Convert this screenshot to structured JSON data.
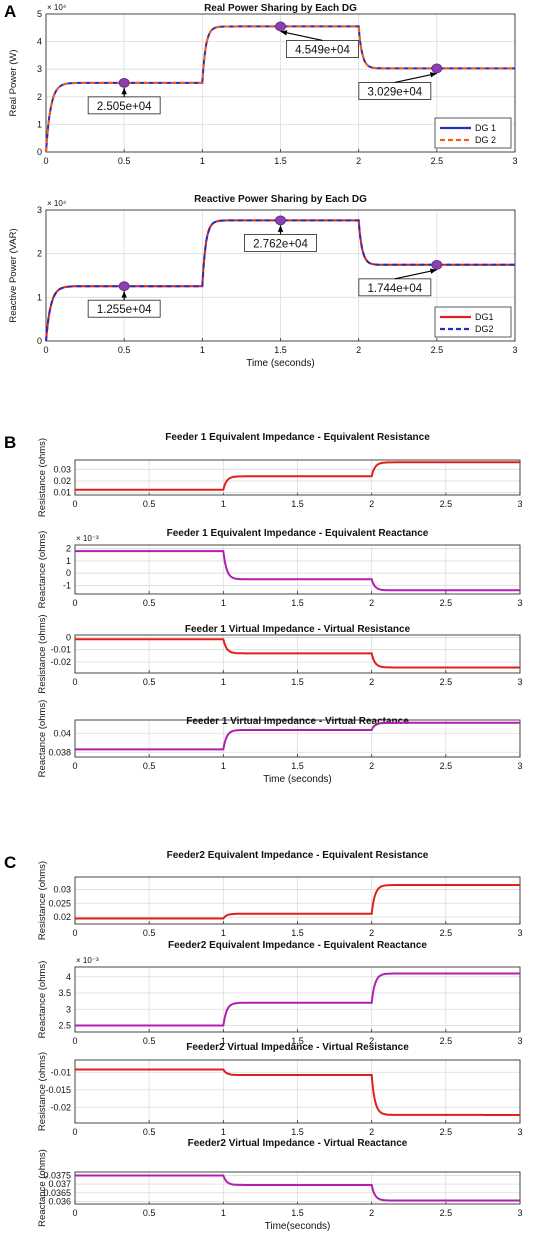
{
  "panels": [
    {
      "letter": "A"
    },
    {
      "letter": "B"
    },
    {
      "letter": "C"
    }
  ],
  "colors": {
    "red": "#e0201c",
    "blue": "#1f2fbf",
    "magenta": "#b11fb1",
    "orange": "#ff5a14",
    "marker": "#8b3fb0",
    "grid": "#dcdcdc"
  },
  "chart_data": [
    {
      "type": "line",
      "panel": "A",
      "title": "Real Power Sharing by Each DG",
      "ylabel": "Real Power (W)",
      "xlabel": "",
      "exponent": "× 10⁴",
      "xlim": [
        0,
        3
      ],
      "ylim": [
        0,
        5
      ],
      "xticks": [
        "0",
        "0.5",
        "1",
        "1.5",
        "2",
        "2.5",
        "3"
      ],
      "yticks": [
        "0",
        "1",
        "2",
        "3",
        "4",
        "5"
      ],
      "segments": [
        [
          0,
          2.505
        ],
        [
          1,
          4.549
        ],
        [
          2,
          3.029
        ]
      ],
      "series": [
        {
          "name": "DG 1",
          "color": "#1f2fbf",
          "dash": "solid"
        },
        {
          "name": "DG 2",
          "color": "#ff5a14",
          "dash": "dashed"
        }
      ],
      "legend": "bottom-right",
      "annotations": [
        {
          "x": 0.5,
          "y": 2.505,
          "text": "2.505e+04",
          "placement": "below"
        },
        {
          "x": 1.5,
          "y": 4.549,
          "text": "4.549e+04",
          "placement": "below-right"
        },
        {
          "x": 2.5,
          "y": 3.029,
          "text": "3.029e+04",
          "placement": "below-left"
        }
      ]
    },
    {
      "type": "line",
      "panel": "A",
      "title": "Reactive Power Sharing by Each DG",
      "ylabel": "Reactive Power (VAR)",
      "xlabel": "Time (seconds)",
      "exponent": "× 10⁴",
      "xlim": [
        0,
        3
      ],
      "ylim": [
        0,
        3
      ],
      "xticks": [
        "0",
        "0.5",
        "1",
        "1.5",
        "2",
        "2.5",
        "3"
      ],
      "yticks": [
        "0",
        "1",
        "2",
        "3"
      ],
      "segments": [
        [
          0,
          1.255
        ],
        [
          1,
          2.762
        ],
        [
          2,
          1.744
        ]
      ],
      "series": [
        {
          "name": "DG1",
          "color": "#e0201c",
          "dash": "solid"
        },
        {
          "name": "DG2",
          "color": "#1f2fbf",
          "dash": "dashed"
        }
      ],
      "legend": "bottom-right",
      "annotations": [
        {
          "x": 0.5,
          "y": 1.255,
          "text": "1.255e+04",
          "placement": "below"
        },
        {
          "x": 1.5,
          "y": 2.762,
          "text": "2.762e+04",
          "placement": "below"
        },
        {
          "x": 2.5,
          "y": 1.744,
          "text": "1.744e+04",
          "placement": "below-left"
        }
      ]
    },
    {
      "type": "line",
      "panel": "B",
      "title": "Feeder 1 Equivalent Impedance  - Equivalent Resistance",
      "ylabel": "Resistance (ohms)",
      "xlabel": "",
      "xlim": [
        0,
        3
      ],
      "ylim": [
        0.008,
        0.038
      ],
      "xticks": [
        "0",
        "0.5",
        "1",
        "1.5",
        "2",
        "2.5",
        "3"
      ],
      "yticks": [
        "0.01",
        "0.02",
        "0.03"
      ],
      "ytick_values": [
        0.01,
        0.02,
        0.03
      ],
      "segments": [
        [
          0,
          0.0125
        ],
        [
          1,
          0.024
        ],
        [
          2,
          0.036
        ]
      ],
      "series": [
        {
          "color": "#e0201c"
        }
      ]
    },
    {
      "type": "line",
      "panel": "B",
      "title": "Feeder 1 Equivalent Impedance  -  Equivalent Reactance",
      "ylabel": "Reactance (ohms)",
      "xlabel": "",
      "exponent": "× 10⁻³",
      "xlim": [
        0,
        3
      ],
      "ylim": [
        -1.7,
        2.3
      ],
      "xticks": [
        "0",
        "0.5",
        "1",
        "1.5",
        "2",
        "2.5",
        "3"
      ],
      "yticks": [
        "-1",
        "0",
        "1",
        "2"
      ],
      "ytick_values": [
        -1,
        0,
        1,
        2
      ],
      "segments": [
        [
          0,
          1.8
        ],
        [
          1,
          -0.5
        ],
        [
          2,
          -1.4
        ]
      ],
      "series": [
        {
          "color": "#b11fb1"
        }
      ]
    },
    {
      "type": "line",
      "panel": "B",
      "title": "Feeder 1 Virtual Impedance - Virtual Resistance",
      "ylabel": "Resistance (ohms)",
      "xlabel": "",
      "xlim": [
        0,
        3
      ],
      "ylim": [
        -0.029,
        0.002
      ],
      "xticks": [
        "0",
        "0.5",
        "1",
        "1.5",
        "2",
        "2.5",
        "3"
      ],
      "yticks": [
        "0",
        "-0.01",
        "-0.02"
      ],
      "ytick_values": [
        0,
        -0.01,
        -0.02
      ],
      "segments": [
        [
          0,
          -0.0015
        ],
        [
          1,
          -0.013
        ],
        [
          2,
          -0.0245
        ]
      ],
      "series": [
        {
          "color": "#e0201c"
        }
      ]
    },
    {
      "type": "line",
      "panel": "B",
      "title": "Feeder 1 Virtual Impedance - Virtual Reactance",
      "ylabel": "Reactance (ohms)",
      "xlabel": "Time (seconds)",
      "xlim": [
        0,
        3
      ],
      "ylim": [
        0.0375,
        0.0414
      ],
      "xticks": [
        "0",
        "0.5",
        "1",
        "1.5",
        "2",
        "2.5",
        "3"
      ],
      "yticks": [
        "0.038",
        "0.04"
      ],
      "ytick_values": [
        0.038,
        0.04
      ],
      "segments": [
        [
          0,
          0.0383
        ],
        [
          1,
          0.04035
        ],
        [
          2,
          0.0411
        ]
      ],
      "series": [
        {
          "color": "#b11fb1"
        }
      ]
    },
    {
      "type": "line",
      "panel": "C",
      "title": "Feeder2 Equivalent Impedance - Equivalent Resistance",
      "ylabel": "Resistance (ohms)",
      "xlabel": "",
      "xlim": [
        0,
        3
      ],
      "ylim": [
        0.0175,
        0.0345
      ],
      "xticks": [
        "0",
        "0.5",
        "1",
        "1.5",
        "2",
        "2.5",
        "3"
      ],
      "yticks": [
        "0.02",
        "0.025",
        "0.03"
      ],
      "ytick_values": [
        0.02,
        0.025,
        0.03
      ],
      "segments": [
        [
          0,
          0.0195
        ],
        [
          1,
          0.0212
        ],
        [
          2,
          0.0316
        ]
      ],
      "series": [
        {
          "color": "#e0201c"
        }
      ]
    },
    {
      "type": "line",
      "panel": "C",
      "title": "Feeder2 Equivalent Impedance - Equivalent Reactance",
      "ylabel": "Reactance (ohms)",
      "xlabel": "",
      "exponent": "× 10⁻³",
      "xlim": [
        0,
        3
      ],
      "ylim": [
        2.3,
        4.3
      ],
      "xticks": [
        "0",
        "0.5",
        "1",
        "1.5",
        "2",
        "2.5",
        "3"
      ],
      "yticks": [
        "2.5",
        "3",
        "3.5",
        "4"
      ],
      "ytick_values": [
        2.5,
        3,
        3.5,
        4
      ],
      "segments": [
        [
          0,
          2.5
        ],
        [
          1,
          3.2
        ],
        [
          2,
          4.1
        ]
      ],
      "series": [
        {
          "color": "#b11fb1"
        }
      ]
    },
    {
      "type": "line",
      "panel": "C",
      "title": "Feeder2 Virtual Impedance - Virtual Resistance",
      "ylabel": "Resistance (ohms)",
      "xlabel": "",
      "xlim": [
        0,
        3
      ],
      "ylim": [
        -0.0245,
        -0.0065
      ],
      "xticks": [
        "0",
        "0.5",
        "1",
        "1.5",
        "2",
        "2.5",
        "3"
      ],
      "yticks": [
        "-0.01",
        "-0.015",
        "-0.02"
      ],
      "ytick_values": [
        -0.01,
        -0.015,
        -0.02
      ],
      "segments": [
        [
          0,
          -0.0092
        ],
        [
          1,
          -0.0108
        ],
        [
          2,
          -0.0222
        ]
      ],
      "series": [
        {
          "color": "#e0201c"
        }
      ]
    },
    {
      "type": "line",
      "panel": "C",
      "title": "Feeder2 Virtual Impedance - Virtual Reactance",
      "ylabel": "Reactance (ohms)",
      "xlabel": "Time(seconds)",
      "xlim": [
        0,
        3
      ],
      "ylim": [
        0.03585,
        0.0377
      ],
      "xticks": [
        "0",
        "0.5",
        "1",
        "1.5",
        "2",
        "2.5",
        "3"
      ],
      "yticks": [
        "0.0375",
        "0.037",
        "0.0365",
        "0.036"
      ],
      "ytick_values": [
        0.0375,
        0.037,
        0.0365,
        0.036
      ],
      "segments": [
        [
          0,
          0.0375
        ],
        [
          1,
          0.03695
        ],
        [
          2,
          0.03605
        ]
      ],
      "series": [
        {
          "color": "#b11fb1"
        }
      ]
    }
  ]
}
